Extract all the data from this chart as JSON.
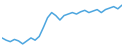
{
  "values": [
    38,
    35,
    33,
    36,
    34,
    30,
    34,
    38,
    35,
    40,
    52,
    65,
    72,
    68,
    62,
    68,
    70,
    72,
    70,
    73,
    75,
    72,
    74,
    76,
    72,
    76,
    78,
    80,
    77,
    82
  ],
  "line_color": "#4da6df",
  "background_color": "#ffffff",
  "linewidth": 1.1
}
